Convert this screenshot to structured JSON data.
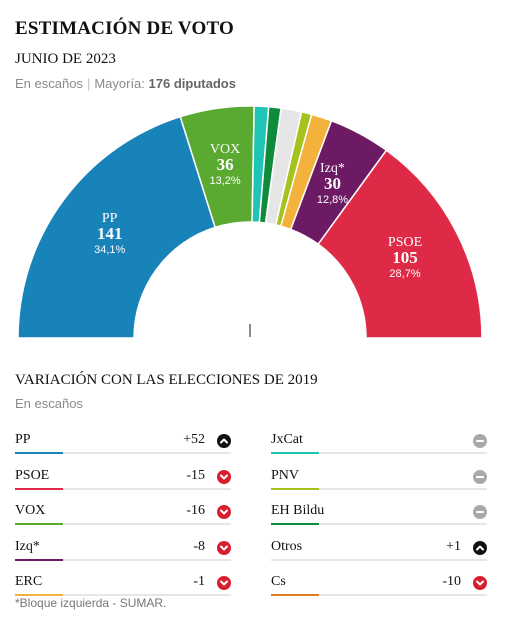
{
  "header": {
    "title": "ESTIMACIÓN DE VOTO",
    "subtitle": "JUNIO DE 2023",
    "unit": "En escaños",
    "majority_label": "Mayoría:",
    "majority_value": "176 diputados"
  },
  "chart_data": {
    "type": "parliament-hemicycle",
    "unit": "escaños",
    "total": 350,
    "order": "left-to-right",
    "seats": [
      {
        "party": "PP",
        "seats": 141,
        "pct": "34,1%",
        "color": "#1883b8",
        "labeled": true
      },
      {
        "party": "VOX",
        "seats": 36,
        "pct": "13,2%",
        "color": "#5aaa32",
        "labeled": true
      },
      {
        "party": "JxCat",
        "seats": 7,
        "color": "#1fc4b4",
        "labeled": false
      },
      {
        "party": "EH Bildu",
        "seats": 6,
        "color": "#0e8c3c",
        "labeled": false
      },
      {
        "party": "Otros",
        "seats": 10,
        "color": "#e6e6e6",
        "labeled": false
      },
      {
        "party": "PNV",
        "seats": 5,
        "color": "#a6c21e",
        "labeled": false
      },
      {
        "party": "ERC",
        "seats": 10,
        "color": "#f2b23c",
        "labeled": false
      },
      {
        "party": "Izq*",
        "seats": 30,
        "pct": "12,8%",
        "color": "#6b1a63",
        "labeled": true
      },
      {
        "party": "PSOE",
        "seats": 105,
        "pct": "28,7%",
        "color": "#df2a47",
        "labeled": true
      }
    ]
  },
  "variation": {
    "title": "VARIACIÓN CON LAS ELECCIONES DE 2019",
    "unit": "En escaños",
    "rows": [
      {
        "party": "PP",
        "change": "+52",
        "trend": "up",
        "color": "#1883b8"
      },
      {
        "party": "PSOE",
        "change": "-15",
        "trend": "down",
        "color": "#df2a47"
      },
      {
        "party": "VOX",
        "change": "-16",
        "trend": "down",
        "color": "#5aaa32"
      },
      {
        "party": "Izq*",
        "change": "-8",
        "trend": "down",
        "color": "#6b1a63"
      },
      {
        "party": "ERC",
        "change": "-1",
        "trend": "down",
        "color": "#f2b23c"
      },
      {
        "party": "JxCat",
        "change": "",
        "trend": "same",
        "color": "#1fc4b4"
      },
      {
        "party": "PNV",
        "change": "",
        "trend": "same",
        "color": "#a6c21e"
      },
      {
        "party": "EH Bildu",
        "change": "",
        "trend": "same",
        "color": "#0e8c3c"
      },
      {
        "party": "Otros",
        "change": "+1",
        "trend": "up",
        "color": "#e6e6e6"
      },
      {
        "party": "Cs",
        "change": "-10",
        "trend": "down",
        "color": "#e07b20"
      }
    ]
  },
  "footnote": "*Bloque izquierda - SUMAR."
}
